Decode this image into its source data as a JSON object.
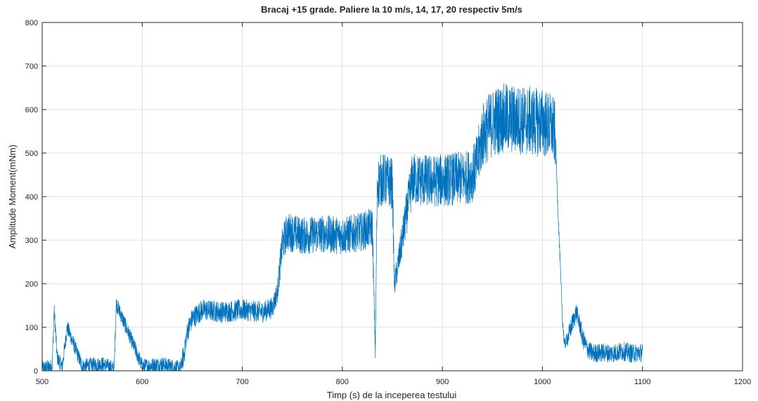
{
  "chart_data": {
    "type": "line",
    "title": "Bracaj +15 grade. Paliere la 10 m/s, 14, 17, 20 respectiv 5m/s",
    "xlabel": "Timp (s) de la inceperea testului",
    "ylabel": "Amplitude Moment(mNm)",
    "xlim": [
      500,
      1200
    ],
    "ylim": [
      0,
      800
    ],
    "xticks": [
      500,
      600,
      700,
      800,
      900,
      1000,
      1100,
      1200
    ],
    "yticks": [
      0,
      100,
      200,
      300,
      400,
      500,
      600,
      700,
      800
    ],
    "grid": true,
    "line_color": "#0072BD",
    "series": [
      {
        "x": [
          500,
          510,
          512,
          515,
          520,
          525,
          540,
          560,
          572,
          574,
          600,
          620,
          638,
          642,
          645,
          650,
          660,
          680,
          700,
          720,
          730,
          735,
          740,
          745,
          760,
          780,
          800,
          820,
          830,
          833,
          834,
          835,
          840,
          850,
          852,
          870,
          890,
          910,
          925,
          930,
          935,
          940,
          950,
          960,
          980,
          1000,
          1010,
          1013,
          1015,
          1018,
          1020,
          1022,
          1026,
          1030,
          1034,
          1038,
          1040,
          1045,
          1050,
          1060,
          1070,
          1080,
          1090,
          1100
        ],
        "values": [
          5,
          10,
          140,
          30,
          8,
          100,
          10,
          15,
          5,
          155,
          10,
          15,
          5,
          40,
          90,
          120,
          140,
          135,
          140,
          135,
          145,
          180,
          290,
          320,
          310,
          315,
          310,
          320,
          330,
          45,
          250,
          430,
          440,
          430,
          195,
          440,
          435,
          440,
          445,
          450,
          480,
          540,
          570,
          580,
          575,
          570,
          560,
          540,
          400,
          230,
          120,
          60,
          80,
          110,
          135,
          100,
          75,
          50,
          40,
          42,
          40,
          45,
          40,
          42
        ]
      }
    ]
  }
}
